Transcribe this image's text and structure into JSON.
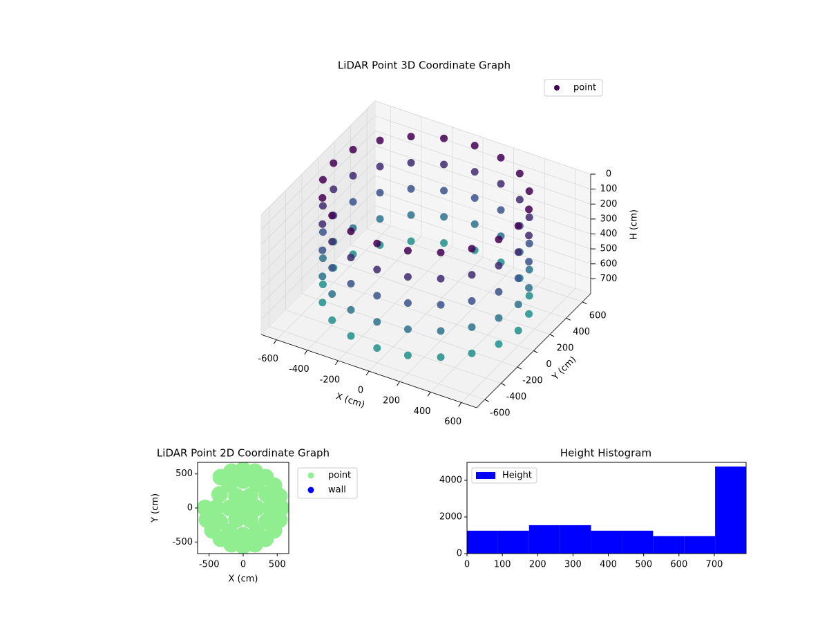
{
  "chart_data": [
    {
      "type": "scatter3d",
      "title": "LiDAR Point 3D Coordinate Graph",
      "xlabel": "X (cm)",
      "ylabel": "Y (cm)",
      "zlabel": "H (cm)",
      "xlim": [
        -700,
        700
      ],
      "ylim": [
        -700,
        700
      ],
      "zlim": [
        0,
        800
      ],
      "z_inverted": true,
      "xticks": [
        -600,
        -400,
        -200,
        0,
        200,
        400,
        600
      ],
      "yticks": [
        -600,
        -400,
        -200,
        0,
        200,
        400,
        600
      ],
      "zticks": [
        0,
        100,
        200,
        300,
        400,
        500,
        600,
        700
      ],
      "colormap": [
        "#440154",
        "#3b528b",
        "#21918c"
      ],
      "legend": "upper right",
      "series": [
        {
          "name": "point",
          "color": "#440154",
          "x": [
            600,
            571,
            485,
            353,
            185,
            0,
            -185,
            -353,
            -485,
            -571,
            -600,
            -571,
            -485,
            -353,
            -185,
            0,
            185,
            353,
            485,
            571,
            600,
            571,
            485,
            353,
            185,
            0,
            -185,
            -353,
            -485,
            -571,
            -600,
            -571,
            -485,
            -353,
            -185,
            0,
            185,
            353,
            485,
            571,
            600,
            571,
            485,
            353,
            185,
            0,
            -185,
            -353,
            -485,
            -571,
            -600,
            -571,
            -485,
            -353,
            -185,
            0,
            185,
            353,
            485,
            571,
            600,
            571,
            485,
            353,
            185,
            0,
            -185,
            -353,
            -485,
            -571,
            -600,
            -571,
            -485,
            -353,
            -185,
            0,
            185,
            353,
            485,
            571,
            600,
            571,
            485,
            353,
            185,
            0,
            -185,
            -353,
            -485,
            -571,
            -600,
            -571,
            -485,
            -353,
            -185,
            0,
            185,
            353,
            485,
            571
          ],
          "y": [
            0,
            185,
            353,
            485,
            571,
            600,
            571,
            485,
            353,
            185,
            0,
            -185,
            -353,
            -485,
            -571,
            -600,
            -571,
            -485,
            -353,
            -185,
            0,
            185,
            353,
            485,
            571,
            600,
            571,
            485,
            353,
            185,
            0,
            -185,
            -353,
            -485,
            -571,
            -600,
            -571,
            -485,
            -353,
            -185,
            0,
            185,
            353,
            485,
            571,
            600,
            571,
            485,
            353,
            185,
            0,
            -185,
            -353,
            -485,
            -571,
            -600,
            -571,
            -485,
            -353,
            -185,
            0,
            185,
            353,
            485,
            571,
            600,
            571,
            485,
            353,
            185,
            0,
            -185,
            -353,
            -485,
            -571,
            -600,
            -571,
            -485,
            -353,
            -185,
            0,
            185,
            353,
            485,
            571,
            600,
            571,
            485,
            353,
            185,
            0,
            -185,
            -353,
            -485,
            -571,
            -600,
            -571,
            -485,
            -353,
            -185
          ],
          "z": [
            700,
            700,
            700,
            700,
            700,
            700,
            700,
            700,
            700,
            700,
            700,
            700,
            700,
            700,
            700,
            700,
            700,
            700,
            700,
            700,
            525,
            525,
            525,
            525,
            525,
            525,
            525,
            525,
            525,
            525,
            525,
            525,
            525,
            525,
            525,
            525,
            525,
            525,
            525,
            525,
            350,
            350,
            350,
            350,
            350,
            350,
            350,
            350,
            350,
            350,
            350,
            350,
            350,
            350,
            350,
            350,
            350,
            350,
            350,
            350,
            175,
            175,
            175,
            175,
            175,
            175,
            175,
            175,
            175,
            175,
            175,
            175,
            175,
            175,
            175,
            175,
            175,
            175,
            175,
            175,
            0,
            0,
            0,
            0,
            0,
            0,
            0,
            0,
            0,
            0,
            0,
            0,
            0,
            0,
            0,
            0,
            0,
            0,
            0,
            0
          ]
        }
      ]
    },
    {
      "type": "scatter",
      "title": "LiDAR Point 2D Coordinate Graph",
      "xlabel": "X (cm)",
      "ylabel": "Y (cm)",
      "xlim": [
        -670,
        670
      ],
      "ylim": [
        -670,
        670
      ],
      "xticks": [
        -500,
        0,
        500
      ],
      "yticks": [
        -500,
        0,
        500
      ],
      "legend": "outside upper right",
      "series": [
        {
          "name": "point",
          "color": "#90ee90",
          "x": [
            0,
            200,
            100,
            -100,
            -200,
            -100,
            100,
            400,
            346,
            200,
            0,
            -200,
            -346,
            -400,
            -346,
            -200,
            0,
            200,
            346,
            560,
            533,
            453,
            329,
            173,
            0,
            -173,
            -329,
            -560,
            -533,
            -453,
            -329,
            -173,
            0,
            173,
            329,
            453,
            533
          ],
          "y": [
            0,
            0,
            173,
            173,
            0,
            -173,
            -173,
            0,
            200,
            346,
            400,
            346,
            200,
            0,
            -200,
            -346,
            -400,
            -346,
            -200,
            0,
            173,
            329,
            453,
            533,
            560,
            533,
            453,
            0,
            -173,
            -329,
            -453,
            -533,
            -560,
            -533,
            -453,
            -329,
            -173
          ]
        },
        {
          "name": "wall",
          "color": "#0000ff",
          "x": [],
          "y": []
        }
      ]
    },
    {
      "type": "histogram",
      "title": "Height Histogram",
      "bins": [
        0,
        87.8,
        175.6,
        263.3,
        351.1,
        438.9,
        526.7,
        614.4,
        702.2,
        790
      ],
      "xlim": [
        0,
        790
      ],
      "ylim": [
        0,
        4980
      ],
      "xticks": [
        0,
        100,
        200,
        300,
        400,
        500,
        600,
        700
      ],
      "yticks": [
        0,
        2000,
        4000
      ],
      "legend": "upper left",
      "series": [
        {
          "name": "Height",
          "color": "#0000ff",
          "values": [
            1250,
            1250,
            1550,
            1550,
            1250,
            1250,
            950,
            950,
            4750
          ]
        }
      ]
    }
  ]
}
